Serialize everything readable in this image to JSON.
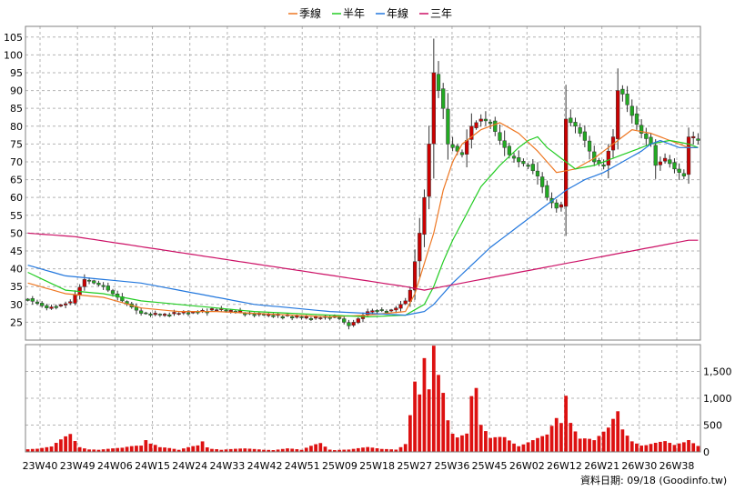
{
  "chart_data": {
    "type": "candlestick",
    "period": "weekly",
    "legend": {
      "placement": "top-center",
      "entries": [
        {
          "label": "季線",
          "color": "#ee7722"
        },
        {
          "label": "半年",
          "color": "#22cc22"
        },
        {
          "label": "年線",
          "color": "#2277dd"
        },
        {
          "label": "三年",
          "color": "#cc1166"
        }
      ]
    },
    "grid": true,
    "x_tick_labels": [
      "23W40",
      "23W49",
      "24W06",
      "24W15",
      "24W24",
      "24W33",
      "24W42",
      "24W51",
      "25W09",
      "25W18",
      "25W27",
      "25W36",
      "25W45",
      "26W02",
      "26W12",
      "26W21",
      "26W30",
      "26W38"
    ],
    "price_axis": {
      "ylim": [
        20,
        108
      ],
      "ticks": [
        25,
        30,
        35,
        40,
        45,
        50,
        55,
        60,
        65,
        70,
        75,
        80,
        85,
        90,
        95,
        100,
        105
      ]
    },
    "volume_axis": {
      "ylim": [
        0,
        2000
      ],
      "ticks": [
        0,
        500,
        1000,
        1500
      ],
      "tick_labels": [
        "0",
        "500",
        "1,000",
        "1,500"
      ]
    },
    "up_color": "#cc0000",
    "down_color": "#22aa22",
    "volume_color": "#dd1111",
    "source_note": "資料日期: 09/18  (Goodinfo.tw)",
    "price_anchors": [
      [
        0,
        31.5
      ],
      [
        4,
        29
      ],
      [
        9,
        30.5
      ],
      [
        12,
        37
      ],
      [
        16,
        35
      ],
      [
        20,
        31
      ],
      [
        24,
        27.5
      ],
      [
        28,
        27
      ],
      [
        32,
        27.5
      ],
      [
        36,
        28
      ],
      [
        40,
        28.5
      ],
      [
        44,
        27.8
      ],
      [
        48,
        27.2
      ],
      [
        52,
        26.8
      ],
      [
        56,
        26.5
      ],
      [
        60,
        26
      ],
      [
        64,
        26.5
      ],
      [
        66,
        26
      ],
      [
        68,
        24
      ],
      [
        70,
        26
      ],
      [
        72,
        28
      ],
      [
        74,
        28.5
      ],
      [
        76,
        28
      ],
      [
        78,
        29
      ],
      [
        80,
        31
      ],
      [
        81,
        34
      ],
      [
        82,
        42
      ],
      [
        83,
        50
      ],
      [
        84,
        60
      ],
      [
        85,
        75
      ],
      [
        86,
        95
      ],
      [
        87,
        90
      ],
      [
        88,
        85
      ],
      [
        89,
        75
      ],
      [
        91,
        73
      ],
      [
        92,
        72
      ],
      [
        94,
        80
      ],
      [
        96,
        82
      ],
      [
        98,
        81
      ],
      [
        100,
        76
      ],
      [
        102,
        72
      ],
      [
        104,
        70
      ],
      [
        106,
        69
      ],
      [
        108,
        66
      ],
      [
        110,
        60
      ],
      [
        112,
        57
      ],
      [
        113,
        58
      ],
      [
        114,
        82
      ],
      [
        116,
        80
      ],
      [
        118,
        76
      ],
      [
        120,
        70
      ],
      [
        122,
        69
      ],
      [
        124,
        77
      ],
      [
        125,
        90
      ],
      [
        126,
        89
      ],
      [
        128,
        83
      ],
      [
        130,
        78
      ],
      [
        132,
        75
      ],
      [
        133,
        69
      ],
      [
        135,
        71
      ],
      [
        137,
        68
      ],
      [
        139,
        66
      ],
      [
        140,
        77
      ],
      [
        142,
        76
      ]
    ],
    "volume_anchors": [
      [
        0,
        70
      ],
      [
        2,
        60
      ],
      [
        5,
        80
      ],
      [
        9,
        280
      ],
      [
        11,
        90
      ],
      [
        15,
        40
      ],
      [
        20,
        60
      ],
      [
        24,
        120
      ],
      [
        25,
        260
      ],
      [
        26,
        220
      ],
      [
        28,
        90
      ],
      [
        32,
        30
      ],
      [
        36,
        110
      ],
      [
        37,
        200
      ],
      [
        38,
        100
      ],
      [
        41,
        40
      ],
      [
        46,
        50
      ],
      [
        50,
        40
      ],
      [
        55,
        60
      ],
      [
        58,
        30
      ],
      [
        62,
        150
      ],
      [
        64,
        50
      ],
      [
        68,
        40
      ],
      [
        72,
        70
      ],
      [
        75,
        50
      ],
      [
        78,
        60
      ],
      [
        80,
        150
      ],
      [
        82,
        1100
      ],
      [
        83,
        850
      ],
      [
        84,
        1350
      ],
      [
        85,
        900
      ],
      [
        86,
        1900
      ],
      [
        87,
        1200
      ],
      [
        88,
        1000
      ],
      [
        89,
        600
      ],
      [
        90,
        400
      ],
      [
        93,
        350
      ],
      [
        94,
        950
      ],
      [
        95,
        1000
      ],
      [
        96,
        400
      ],
      [
        98,
        200
      ],
      [
        101,
        250
      ],
      [
        104,
        150
      ],
      [
        107,
        200
      ],
      [
        110,
        250
      ],
      [
        112,
        500
      ],
      [
        113,
        450
      ],
      [
        114,
        950
      ],
      [
        115,
        550
      ],
      [
        117,
        350
      ],
      [
        120,
        200
      ],
      [
        123,
        350
      ],
      [
        125,
        600
      ],
      [
        126,
        350
      ],
      [
        128,
        200
      ],
      [
        131,
        150
      ],
      [
        135,
        160
      ],
      [
        137,
        100
      ],
      [
        139,
        150
      ],
      [
        140,
        200
      ],
      [
        142,
        130
      ]
    ],
    "ma_anchors": {
      "季線": [
        [
          0,
          36
        ],
        [
          8,
          33
        ],
        [
          16,
          32
        ],
        [
          24,
          29
        ],
        [
          32,
          28
        ],
        [
          40,
          28
        ],
        [
          48,
          27.5
        ],
        [
          56,
          27
        ],
        [
          64,
          26.5
        ],
        [
          72,
          27
        ],
        [
          80,
          28
        ],
        [
          82,
          33
        ],
        [
          86,
          50
        ],
        [
          88,
          62
        ],
        [
          90,
          70
        ],
        [
          92,
          75
        ],
        [
          96,
          79
        ],
        [
          100,
          81
        ],
        [
          104,
          78
        ],
        [
          108,
          73
        ],
        [
          112,
          67
        ],
        [
          116,
          68
        ],
        [
          120,
          71
        ],
        [
          124,
          75
        ],
        [
          128,
          79
        ],
        [
          132,
          78
        ],
        [
          136,
          76
        ],
        [
          140,
          74
        ],
        [
          142,
          74
        ]
      ],
      "半年": [
        [
          0,
          39
        ],
        [
          8,
          34
        ],
        [
          16,
          33
        ],
        [
          24,
          31
        ],
        [
          32,
          30
        ],
        [
          40,
          29
        ],
        [
          48,
          28
        ],
        [
          56,
          27.5
        ],
        [
          64,
          27
        ],
        [
          72,
          26.5
        ],
        [
          80,
          27
        ],
        [
          84,
          30
        ],
        [
          86,
          35
        ],
        [
          88,
          42
        ],
        [
          90,
          48
        ],
        [
          92,
          53
        ],
        [
          94,
          58
        ],
        [
          96,
          63
        ],
        [
          100,
          69
        ],
        [
          104,
          74
        ],
        [
          106,
          76
        ],
        [
          108,
          77
        ],
        [
          110,
          74
        ],
        [
          112,
          72
        ],
        [
          116,
          68
        ],
        [
          120,
          69
        ],
        [
          124,
          71
        ],
        [
          128,
          73
        ],
        [
          132,
          75
        ],
        [
          136,
          76
        ],
        [
          140,
          75
        ],
        [
          142,
          74
        ]
      ],
      "年線": [
        [
          0,
          41
        ],
        [
          8,
          38
        ],
        [
          16,
          37
        ],
        [
          24,
          36
        ],
        [
          32,
          34
        ],
        [
          40,
          32
        ],
        [
          48,
          30
        ],
        [
          56,
          29
        ],
        [
          64,
          28
        ],
        [
          72,
          27.5
        ],
        [
          80,
          27
        ],
        [
          84,
          28
        ],
        [
          86,
          30
        ],
        [
          90,
          36
        ],
        [
          94,
          41
        ],
        [
          98,
          46
        ],
        [
          102,
          50
        ],
        [
          106,
          54
        ],
        [
          110,
          58
        ],
        [
          114,
          62
        ],
        [
          118,
          65
        ],
        [
          122,
          67
        ],
        [
          126,
          70
        ],
        [
          130,
          73
        ],
        [
          132,
          75
        ],
        [
          134,
          76
        ],
        [
          136,
          75
        ],
        [
          138,
          74
        ],
        [
          140,
          74
        ],
        [
          142,
          74
        ]
      ],
      "三年": [
        [
          0,
          50
        ],
        [
          10,
          49
        ],
        [
          20,
          47
        ],
        [
          30,
          45
        ],
        [
          40,
          43
        ],
        [
          50,
          41
        ],
        [
          60,
          39
        ],
        [
          70,
          37
        ],
        [
          80,
          35
        ],
        [
          84,
          34
        ],
        [
          88,
          35
        ],
        [
          92,
          36
        ],
        [
          96,
          37
        ],
        [
          100,
          38
        ],
        [
          104,
          39
        ],
        [
          108,
          40
        ],
        [
          112,
          41
        ],
        [
          116,
          42
        ],
        [
          120,
          43
        ],
        [
          124,
          44
        ],
        [
          128,
          45
        ],
        [
          132,
          46
        ],
        [
          136,
          47
        ],
        [
          140,
          48
        ],
        [
          142,
          48
        ]
      ]
    }
  }
}
